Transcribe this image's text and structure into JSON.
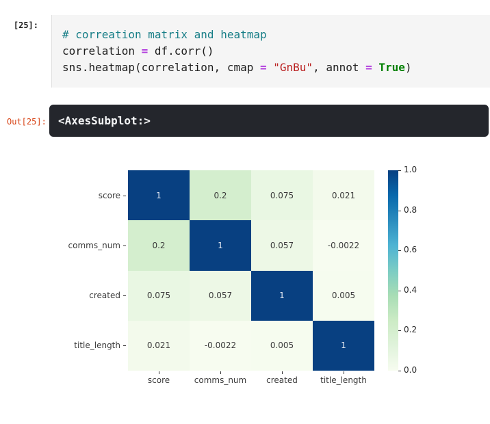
{
  "notebook": {
    "input_prompt": "[25]:",
    "output_prompt": "Out[25]:",
    "output_text": "<AxesSubplot:>",
    "code_lines": [
      [
        {
          "text": "# correation matrix and heatmap",
          "type": "comment"
        }
      ],
      [
        {
          "text": "correlation ",
          "type": "plain"
        },
        {
          "text": "=",
          "type": "operator"
        },
        {
          "text": " df.corr()",
          "type": "plain"
        }
      ],
      [
        {
          "text": "sns.heatmap(correlation, cmap ",
          "type": "plain"
        },
        {
          "text": "=",
          "type": "operator"
        },
        {
          "text": " ",
          "type": "plain"
        },
        {
          "text": "\"GnBu\"",
          "type": "string"
        },
        {
          "text": ", annot ",
          "type": "plain"
        },
        {
          "text": "=",
          "type": "operator"
        },
        {
          "text": " ",
          "type": "plain"
        },
        {
          "text": "True",
          "type": "bool"
        },
        {
          "text": ")",
          "type": "plain"
        }
      ]
    ],
    "colors": {
      "comment": "#177e87",
      "operator": "#b13bdd",
      "string": "#ba2121",
      "bool": "#008000",
      "plain": "#1d1d1d",
      "out_prompt": "#d84315",
      "out_bar_bg": "#24262c"
    }
  },
  "chart_data": {
    "type": "heatmap",
    "title": "",
    "xlabel": "",
    "ylabel": "",
    "categories": [
      "score",
      "comms_num",
      "created",
      "title_length"
    ],
    "matrix": [
      [
        1,
        0.2,
        0.075,
        0.021
      ],
      [
        0.2,
        1,
        0.057,
        -0.0022
      ],
      [
        0.075,
        0.057,
        1,
        0.005
      ],
      [
        0.021,
        -0.0022,
        0.005,
        1
      ]
    ],
    "annotations": [
      [
        "1",
        "0.2",
        "0.075",
        "0.021"
      ],
      [
        "0.2",
        "1",
        "0.057",
        "-0.0022"
      ],
      [
        "0.075",
        "0.057",
        "1",
        "0.005"
      ],
      [
        "0.021",
        "-0.0022",
        "0.005",
        "1"
      ]
    ],
    "cmap": "GnBu",
    "cmap_colors": [
      "#f7fcf0",
      "#e0f3db",
      "#ccebc5",
      "#a8ddb5",
      "#7bccc4",
      "#4eb3d3",
      "#2b8cbe",
      "#0868ac",
      "#084081"
    ],
    "vmin": 0.0,
    "vmax": 1.0,
    "colorbar_ticks": [
      "1.0",
      "0.8",
      "0.6",
      "0.4",
      "0.2",
      "0.0"
    ],
    "annotation_dark_text": "#3a3a3a",
    "annotation_light_text": "#e7ecf4"
  }
}
